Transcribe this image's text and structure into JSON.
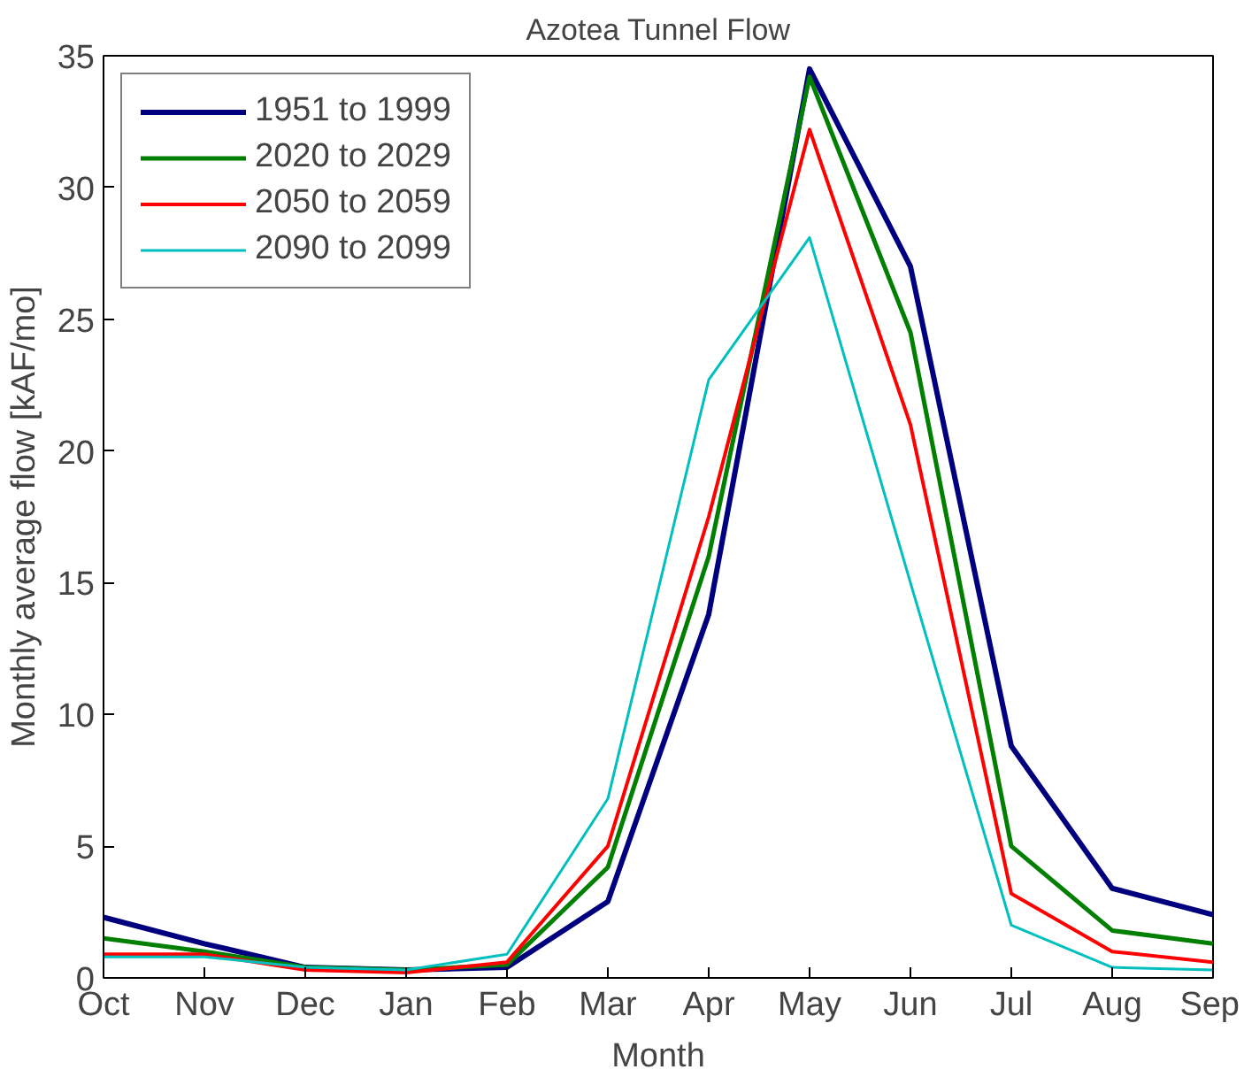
{
  "chart_data": {
    "type": "line",
    "title": "Azotea Tunnel Flow",
    "xlabel": "Month",
    "ylabel": "Monthly average flow [kAF/mo]",
    "categories": [
      "Oct",
      "Nov",
      "Dec",
      "Jan",
      "Feb",
      "Mar",
      "Apr",
      "May",
      "Jun",
      "Jul",
      "Aug",
      "Sep"
    ],
    "ylim": [
      0,
      35
    ],
    "yticks": [
      0,
      5,
      10,
      15,
      20,
      25,
      30,
      35
    ],
    "grid": false,
    "legend": "top left",
    "marker": "none",
    "line_style": "solid",
    "series": [
      {
        "name": "1951 to 1999",
        "color": "#00007f",
        "values": [
          2.3,
          1.3,
          0.4,
          0.3,
          0.4,
          2.9,
          13.8,
          34.5,
          27,
          8.8,
          3.4,
          2.4
        ]
      },
      {
        "name": "2020 to 2029",
        "color": "#007f00",
        "values": [
          1.5,
          1.0,
          0.4,
          0.3,
          0.5,
          4.2,
          16,
          34.2,
          24.5,
          5,
          1.8,
          1.3
        ]
      },
      {
        "name": "2050 to 2059",
        "color": "#ff0000",
        "values": [
          0.9,
          0.9,
          0.3,
          0.2,
          0.6,
          5,
          17.5,
          32.2,
          21,
          3.2,
          1,
          0.6
        ]
      },
      {
        "name": "2090 to 2099",
        "color": "#00bfbf",
        "values": [
          0.8,
          0.8,
          0.4,
          0.3,
          0.9,
          6.8,
          22.7,
          28.1,
          15,
          2,
          0.4,
          0.3
        ]
      }
    ]
  }
}
